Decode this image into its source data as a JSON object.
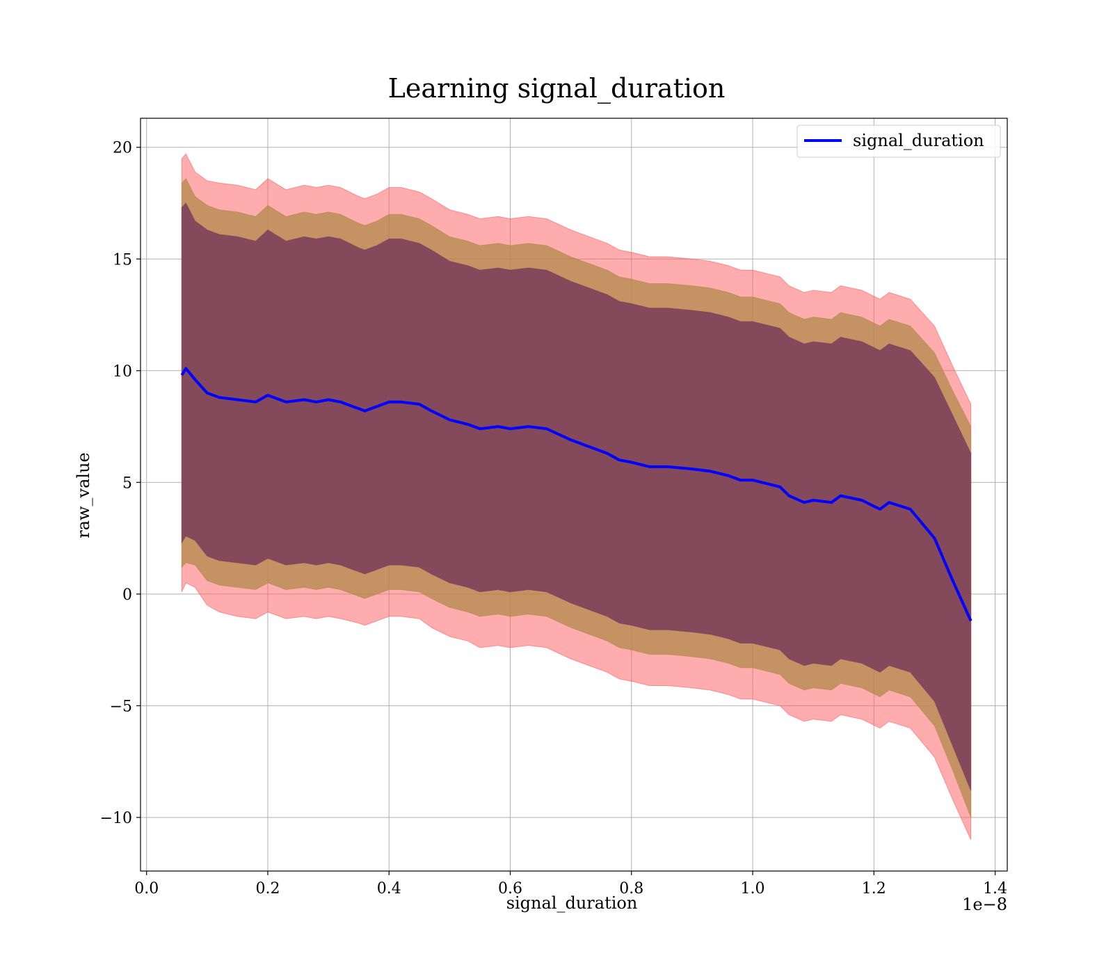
{
  "chart_data": {
    "type": "line",
    "title": "Learning signal_duration",
    "xlabel": "signal_duration",
    "ylabel": "raw_value",
    "x_offset_label": "1e−8",
    "x_ticks": [
      0.0,
      0.2,
      0.4,
      0.6,
      0.8,
      1.0,
      1.2,
      1.4
    ],
    "x_tick_labels": [
      "0.0",
      "0.2",
      "0.4",
      "0.6",
      "0.8",
      "1.0",
      "1.2",
      "1.4"
    ],
    "y_ticks": [
      -10,
      -5,
      0,
      5,
      10,
      15,
      20
    ],
    "y_tick_labels": [
      "−10",
      "−5",
      "0",
      "5",
      "10",
      "15",
      "20"
    ],
    "xlim": [
      -0.01,
      1.42
    ],
    "ylim": [
      -12.4,
      21.3
    ],
    "grid": true,
    "legend": {
      "position": "top-right",
      "entries": [
        "signal_duration"
      ]
    },
    "colors": {
      "line": "#0000ff",
      "band_outer": "#ff5a5f",
      "band_middle": "#b08a4a",
      "band_inner": "#7a3c5a"
    },
    "series": [
      {
        "name": "signal_duration",
        "x": [
          0.058,
          0.065,
          0.08,
          0.1,
          0.12,
          0.15,
          0.18,
          0.2,
          0.23,
          0.26,
          0.28,
          0.3,
          0.32,
          0.35,
          0.36,
          0.38,
          0.4,
          0.42,
          0.45,
          0.47,
          0.5,
          0.53,
          0.55,
          0.58,
          0.6,
          0.63,
          0.66,
          0.7,
          0.73,
          0.76,
          0.78,
          0.8,
          0.83,
          0.86,
          0.9,
          0.93,
          0.96,
          0.98,
          1.0,
          1.03,
          1.045,
          1.06,
          1.085,
          1.1,
          1.13,
          1.145,
          1.18,
          1.21,
          1.225,
          1.26,
          1.3,
          1.33,
          1.36
        ],
        "y": [
          9.8,
          10.1,
          9.6,
          9.0,
          8.8,
          8.7,
          8.6,
          8.9,
          8.6,
          8.7,
          8.6,
          8.7,
          8.6,
          8.3,
          8.2,
          8.4,
          8.6,
          8.6,
          8.5,
          8.2,
          7.8,
          7.6,
          7.4,
          7.5,
          7.4,
          7.5,
          7.4,
          6.9,
          6.6,
          6.3,
          6.0,
          5.9,
          5.7,
          5.7,
          5.6,
          5.5,
          5.3,
          5.1,
          5.1,
          4.9,
          4.8,
          4.4,
          4.1,
          4.2,
          4.1,
          4.4,
          4.2,
          3.8,
          4.1,
          3.8,
          2.5,
          0.6,
          -1.2
        ],
        "band_outer_upper": [
          19.5,
          19.7,
          18.9,
          18.5,
          18.4,
          18.3,
          18.1,
          18.6,
          18.1,
          18.3,
          18.2,
          18.3,
          18.2,
          17.8,
          17.7,
          17.9,
          18.2,
          18.2,
          18.0,
          17.7,
          17.2,
          17.0,
          16.8,
          16.9,
          16.8,
          16.9,
          16.8,
          16.3,
          16.0,
          15.7,
          15.4,
          15.3,
          15.1,
          15.1,
          15.0,
          14.9,
          14.7,
          14.5,
          14.5,
          14.3,
          14.2,
          13.8,
          13.5,
          13.6,
          13.5,
          13.8,
          13.6,
          13.2,
          13.5,
          13.2,
          12.0,
          10.2,
          8.5
        ],
        "band_outer_lower": [
          0.1,
          0.5,
          0.3,
          -0.5,
          -0.8,
          -1.0,
          -1.1,
          -0.8,
          -1.1,
          -1.0,
          -1.1,
          -1.0,
          -1.1,
          -1.3,
          -1.4,
          -1.2,
          -1.0,
          -1.0,
          -1.1,
          -1.5,
          -1.9,
          -2.1,
          -2.4,
          -2.3,
          -2.4,
          -2.3,
          -2.4,
          -2.9,
          -3.2,
          -3.5,
          -3.8,
          -3.9,
          -4.1,
          -4.1,
          -4.2,
          -4.3,
          -4.5,
          -4.7,
          -4.7,
          -4.9,
          -5.0,
          -5.4,
          -5.7,
          -5.6,
          -5.7,
          -5.4,
          -5.6,
          -6.0,
          -5.7,
          -6.0,
          -7.3,
          -9.2,
          -11.0
        ],
        "band_middle_upper": [
          18.4,
          18.6,
          17.8,
          17.4,
          17.2,
          17.1,
          16.9,
          17.4,
          16.9,
          17.1,
          17.0,
          17.1,
          17.0,
          16.6,
          16.5,
          16.7,
          17.0,
          17.0,
          16.8,
          16.5,
          16.0,
          15.8,
          15.6,
          15.7,
          15.6,
          15.7,
          15.6,
          15.1,
          14.8,
          14.5,
          14.2,
          14.1,
          13.9,
          13.9,
          13.8,
          13.7,
          13.5,
          13.3,
          13.3,
          13.1,
          13.0,
          12.6,
          12.3,
          12.4,
          12.3,
          12.6,
          12.4,
          12.0,
          12.3,
          12.0,
          10.8,
          9.1,
          7.5
        ],
        "band_middle_lower": [
          1.2,
          1.4,
          1.3,
          0.6,
          0.4,
          0.3,
          0.2,
          0.5,
          0.2,
          0.3,
          0.2,
          0.3,
          0.2,
          -0.1,
          -0.2,
          0.0,
          0.2,
          0.2,
          0.1,
          -0.2,
          -0.6,
          -0.8,
          -1.0,
          -0.9,
          -1.0,
          -0.9,
          -1.0,
          -1.5,
          -1.8,
          -2.1,
          -2.4,
          -2.5,
          -2.7,
          -2.7,
          -2.8,
          -2.9,
          -3.1,
          -3.3,
          -3.3,
          -3.5,
          -3.6,
          -4.0,
          -4.3,
          -4.2,
          -4.3,
          -4.0,
          -4.2,
          -4.6,
          -4.3,
          -4.6,
          -5.9,
          -7.9,
          -10.0
        ],
        "band_inner_upper": [
          17.3,
          17.5,
          16.7,
          16.3,
          16.1,
          16.0,
          15.8,
          16.3,
          15.8,
          16.0,
          15.9,
          16.0,
          15.9,
          15.5,
          15.4,
          15.6,
          15.9,
          15.9,
          15.7,
          15.4,
          14.9,
          14.7,
          14.5,
          14.6,
          14.5,
          14.6,
          14.5,
          14.0,
          13.7,
          13.4,
          13.1,
          13.0,
          12.8,
          12.8,
          12.7,
          12.6,
          12.4,
          12.2,
          12.2,
          12.0,
          11.9,
          11.5,
          11.2,
          11.3,
          11.2,
          11.5,
          11.3,
          10.9,
          11.2,
          10.9,
          9.7,
          8.0,
          6.3
        ],
        "band_inner_lower": [
          2.3,
          2.6,
          2.4,
          1.7,
          1.5,
          1.4,
          1.3,
          1.6,
          1.3,
          1.4,
          1.3,
          1.4,
          1.3,
          1.0,
          0.9,
          1.1,
          1.3,
          1.3,
          1.2,
          0.9,
          0.5,
          0.3,
          0.1,
          0.2,
          0.1,
          0.2,
          0.1,
          -0.4,
          -0.7,
          -1.0,
          -1.3,
          -1.4,
          -1.6,
          -1.6,
          -1.7,
          -1.8,
          -2.0,
          -2.2,
          -2.2,
          -2.4,
          -2.5,
          -2.9,
          -3.2,
          -3.1,
          -3.2,
          -2.9,
          -3.1,
          -3.5,
          -3.2,
          -3.5,
          -4.8,
          -6.8,
          -8.8
        ]
      }
    ]
  }
}
